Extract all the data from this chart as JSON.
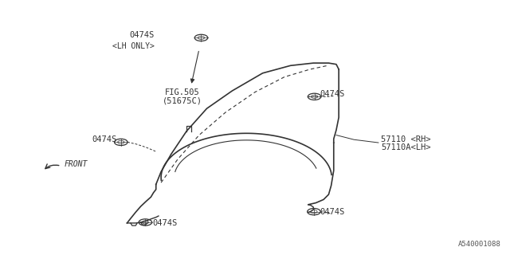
{
  "bg_color": "#ffffff",
  "line_color": "#333333",
  "text_color": "#333333",
  "diagram_id": "A540001088",
  "label_0474S": "0474S",
  "label_lh_only": "<LH ONLY>",
  "label_fig505_1": "FIG.505",
  "label_fig505_2": "(51675C)",
  "label_57110_rh": "57110 <RH>",
  "label_57110_lh": "57110A<LH>",
  "label_front": "FRONT",
  "font_size": 7.5
}
